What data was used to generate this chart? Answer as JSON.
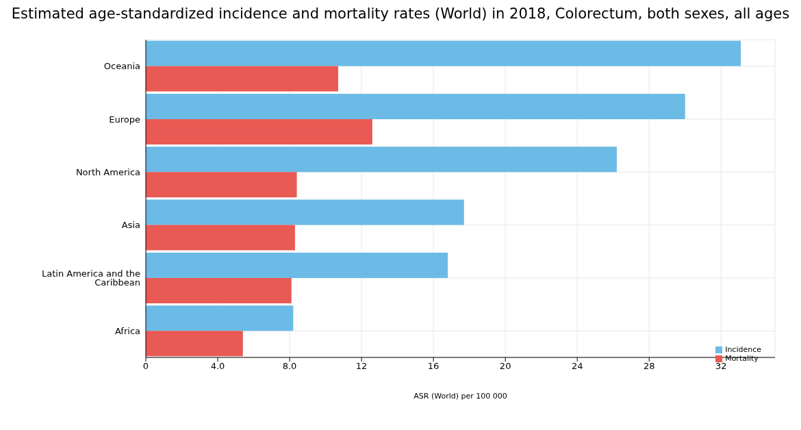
{
  "chart_data": {
    "type": "bar",
    "orientation": "horizontal",
    "title": "Estimated age-standardized incidence and mortality rates (World) in 2018, Colorectum, both sexes, all ages",
    "xlabel": "ASR (World) per 100 000",
    "categories": [
      "Oceania",
      "Europe",
      "North America",
      "Asia",
      "Latin America and the Caribbean",
      "Africa"
    ],
    "series": [
      {
        "name": "Incidence",
        "color": "#6bbbe6",
        "values": [
          33.1,
          30.0,
          26.2,
          17.7,
          16.8,
          8.2
        ]
      },
      {
        "name": "Mortality",
        "color": "#e85a53",
        "values": [
          10.7,
          12.6,
          8.4,
          8.3,
          8.1,
          5.4
        ]
      }
    ],
    "xlim": [
      0,
      35
    ],
    "xticks": [
      0,
      {
        "value": 4,
        "label": "4.0"
      },
      {
        "value": 8,
        "label": "8.0"
      },
      12,
      16,
      20,
      24,
      28,
      32
    ],
    "grid": true,
    "legend": "bottom right"
  }
}
